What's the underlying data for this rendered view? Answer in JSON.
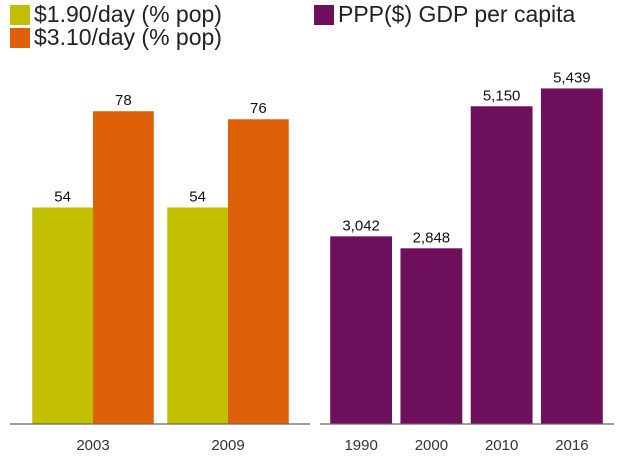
{
  "chart_data": [
    {
      "type": "bar",
      "categories": [
        "2003",
        "2009"
      ],
      "series": [
        {
          "name": "$1.90/day (% pop)",
          "color": "#c2c000",
          "values": [
            54,
            54
          ]
        },
        {
          "name": "$3.10/day (% pop)",
          "color": "#e0600a",
          "values": [
            78,
            76
          ]
        }
      ],
      "ylim": [
        0,
        100
      ]
    },
    {
      "type": "bar",
      "categories": [
        "1990",
        "2000",
        "2010",
        "2016"
      ],
      "series": [
        {
          "name": "PPP($) GDP per capita",
          "color": "#6e0f5c",
          "values": [
            3042,
            2848,
            5150,
            5439
          ],
          "value_labels": [
            "3,042",
            "2,848",
            "5,150",
            "5,439"
          ]
        }
      ],
      "ylim": [
        0,
        6500
      ]
    }
  ]
}
